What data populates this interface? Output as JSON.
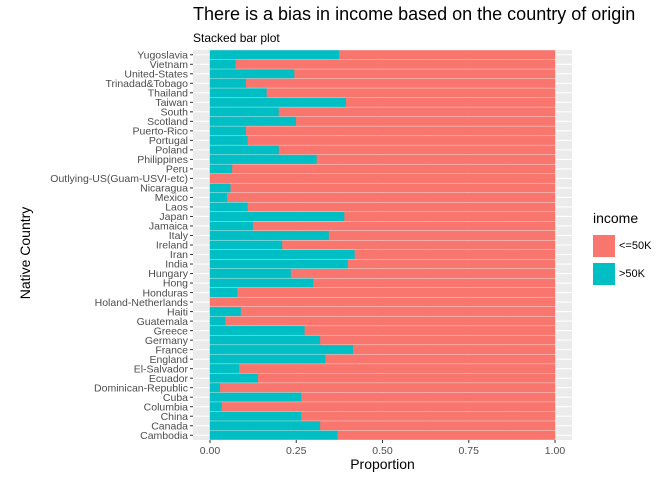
{
  "chart_data": {
    "type": "bar",
    "orientation": "horizontal",
    "stacked": true,
    "title": "There is a bias in income based on the country of origin",
    "subtitle": "Stacked bar plot",
    "xlabel": "Proportion",
    "ylabel": "Native Country",
    "xlim": [
      0,
      1
    ],
    "xticks": [
      "0.00",
      "0.25",
      "0.50",
      "0.75",
      "1.00"
    ],
    "xtick_values": [
      0,
      0.25,
      0.5,
      0.75,
      1
    ],
    "grid": true,
    "legend": {
      "title": "income",
      "position": "right",
      "entries": [
        {
          "label": "<=50K",
          "color": "#F8766D"
        },
        {
          "label": ">50K",
          "color": "#00BFC4"
        }
      ]
    },
    "categories": [
      "Cambodia",
      "Canada",
      "China",
      "Columbia",
      "Cuba",
      "Dominican-Republic",
      "Ecuador",
      "El-Salvador",
      "England",
      "France",
      "Germany",
      "Greece",
      "Guatemala",
      "Haiti",
      "Holand-Netherlands",
      "Honduras",
      "Hong",
      "Hungary",
      "India",
      "Iran",
      "Ireland",
      "Italy",
      "Jamaica",
      "Japan",
      "Laos",
      "Mexico",
      "Nicaragua",
      "Outlying-US(Guam-USVI-etc)",
      "Peru",
      "Philippines",
      "Poland",
      "Portugal",
      "Puerto-Rico",
      "Scotland",
      "South",
      "Taiwan",
      "Thailand",
      "Trinadad&Tobago",
      "United-States",
      "Vietnam",
      "Yugoslavia"
    ],
    "series": [
      {
        "name": ">50K",
        "color": "#00BFC4",
        "values": [
          0.37,
          0.32,
          0.265,
          0.035,
          0.265,
          0.03,
          0.14,
          0.085,
          0.335,
          0.415,
          0.32,
          0.275,
          0.045,
          0.09,
          0.0,
          0.08,
          0.3,
          0.235,
          0.4,
          0.42,
          0.21,
          0.345,
          0.125,
          0.39,
          0.11,
          0.05,
          0.06,
          0.0,
          0.065,
          0.31,
          0.2,
          0.11,
          0.105,
          0.25,
          0.2,
          0.395,
          0.165,
          0.105,
          0.245,
          0.075,
          0.375
        ]
      },
      {
        "name": "<=50K",
        "color": "#F8766D",
        "values": [
          0.63,
          0.68,
          0.735,
          0.965,
          0.735,
          0.97,
          0.86,
          0.915,
          0.665,
          0.585,
          0.68,
          0.725,
          0.955,
          0.91,
          1.0,
          0.92,
          0.7,
          0.765,
          0.6,
          0.58,
          0.79,
          0.655,
          0.875,
          0.61,
          0.89,
          0.95,
          0.94,
          1.0,
          0.935,
          0.69,
          0.8,
          0.89,
          0.895,
          0.75,
          0.8,
          0.605,
          0.835,
          0.895,
          0.755,
          0.925,
          0.625
        ]
      }
    ]
  }
}
